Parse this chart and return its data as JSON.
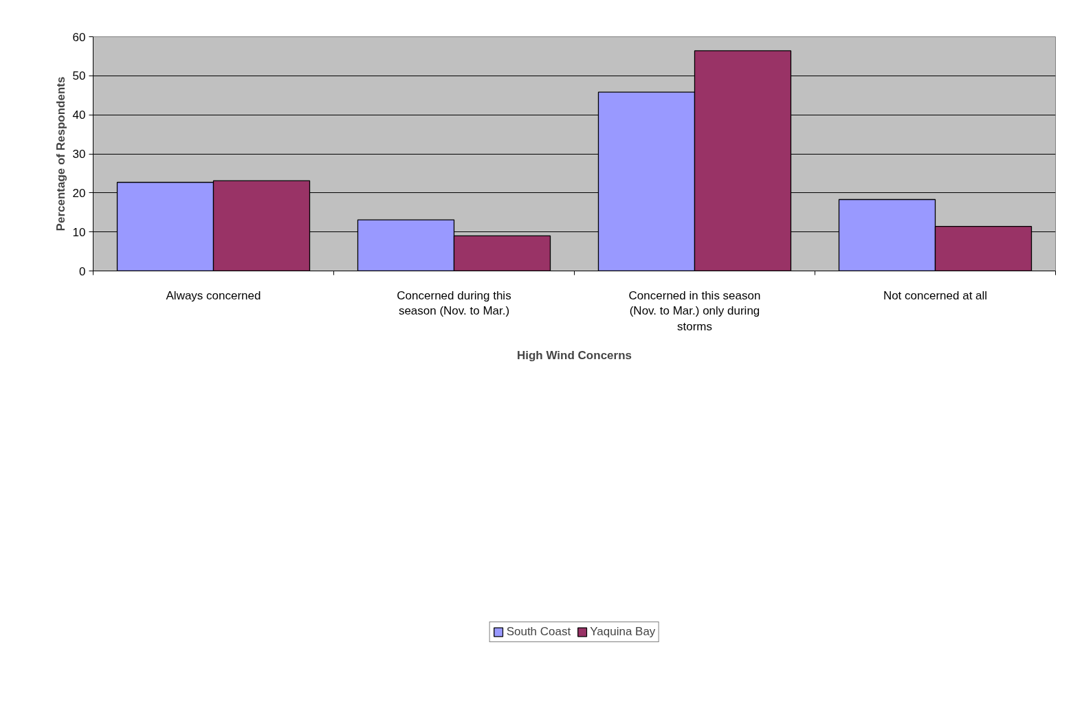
{
  "chart_data": {
    "type": "bar",
    "xlabel": "High Wind Concerns",
    "ylabel": "Percentage of Respondents",
    "categories": [
      "Always concerned",
      "Concerned during this season (Nov. to Mar.)",
      "Concerned in this season (Nov. to Mar.) only during storms",
      "Not concerned at all"
    ],
    "series": [
      {
        "name": "South Coast",
        "color": "#9999ff",
        "values": [
          22.7,
          13.1,
          45.8,
          18.3
        ]
      },
      {
        "name": "Yaquina Bay",
        "color": "#993366",
        "values": [
          23.1,
          9.0,
          56.4,
          11.4
        ]
      }
    ],
    "ylim": [
      0,
      60
    ],
    "yticks": [
      0,
      10,
      20,
      30,
      40,
      50,
      60
    ],
    "grid": "y",
    "legend": "bottom"
  }
}
